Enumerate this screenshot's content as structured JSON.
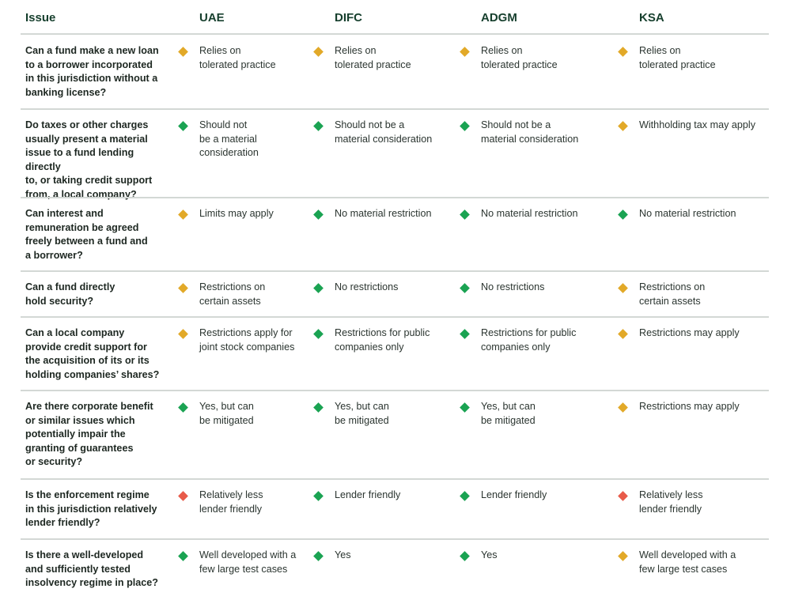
{
  "header": {
    "issue": "Issue",
    "uae": "UAE",
    "difc": "DIFC",
    "adgm": "ADGM",
    "ksa": "KSA"
  },
  "status_colors": {
    "green": "#1aa352",
    "amber": "#e2a928",
    "red": "#e85b4a"
  },
  "rows": [
    {
      "question": [
        "Can a fund make a new loan",
        "to a borrower incorporated",
        "in this jurisdiction without a",
        "banking license?"
      ],
      "uae": {
        "status": "amber",
        "text": [
          "Relies on",
          "tolerated practice"
        ]
      },
      "difc": {
        "status": "amber",
        "text": [
          "Relies on",
          "tolerated practice"
        ]
      },
      "adgm": {
        "status": "amber",
        "text": [
          "Relies on",
          "tolerated practice"
        ]
      },
      "ksa": {
        "status": "amber",
        "text": [
          "Relies on",
          "tolerated practice"
        ]
      }
    },
    {
      "question": [
        "Do taxes or other charges",
        "usually present a material",
        "issue to a fund lending directly",
        "to, or taking credit support",
        "from, a local company?"
      ],
      "uae": {
        "status": "green",
        "text": [
          "Should not",
          "be a material",
          "consideration"
        ]
      },
      "difc": {
        "status": "green",
        "text": [
          "Should not be a",
          "material consideration"
        ]
      },
      "adgm": {
        "status": "green",
        "text": [
          "Should not be a",
          "material consideration"
        ]
      },
      "ksa": {
        "status": "amber",
        "text": [
          "Withholding tax may apply"
        ]
      }
    },
    {
      "question": [
        "Can interest and",
        "remuneration be agreed",
        "freely between a fund and",
        "a borrower?"
      ],
      "uae": {
        "status": "amber",
        "text": [
          "Limits may apply"
        ]
      },
      "difc": {
        "status": "green",
        "text": [
          "No material restriction"
        ]
      },
      "adgm": {
        "status": "green",
        "text": [
          "No material restriction"
        ]
      },
      "ksa": {
        "status": "green",
        "text": [
          "No material restriction"
        ]
      }
    },
    {
      "question": [
        "Can a fund directly",
        "hold security?"
      ],
      "uae": {
        "status": "amber",
        "text": [
          "Restrictions on",
          "certain assets"
        ]
      },
      "difc": {
        "status": "green",
        "text": [
          "No restrictions"
        ]
      },
      "adgm": {
        "status": "green",
        "text": [
          "No restrictions"
        ]
      },
      "ksa": {
        "status": "amber",
        "text": [
          "Restrictions on",
          "certain assets"
        ]
      }
    },
    {
      "question": [
        "Can a local company",
        "provide credit support for",
        "the acquisition of its or its",
        "holding companies’ shares?"
      ],
      "uae": {
        "status": "amber",
        "text": [
          "Restrictions apply for",
          "joint stock companies"
        ]
      },
      "difc": {
        "status": "green",
        "text": [
          "Restrictions for public",
          "companies only"
        ]
      },
      "adgm": {
        "status": "green",
        "text": [
          "Restrictions for public",
          "companies only"
        ]
      },
      "ksa": {
        "status": "amber",
        "text": [
          "Restrictions may apply"
        ]
      }
    },
    {
      "question": [
        "Are there corporate benefit",
        "or similar issues which",
        "potentially impair the",
        "granting of guarantees",
        "or security?"
      ],
      "uae": {
        "status": "green",
        "text": [
          "Yes, but can",
          "be mitigated"
        ]
      },
      "difc": {
        "status": "green",
        "text": [
          "Yes, but can",
          "be mitigated"
        ]
      },
      "adgm": {
        "status": "green",
        "text": [
          "Yes, but can",
          "be mitigated"
        ]
      },
      "ksa": {
        "status": "amber",
        "text": [
          "Restrictions may apply"
        ]
      }
    },
    {
      "question": [
        "Is the enforcement regime",
        "in this jurisdiction relatively",
        "lender friendly?"
      ],
      "uae": {
        "status": "red",
        "text": [
          "Relatively less",
          "lender friendly"
        ]
      },
      "difc": {
        "status": "green",
        "text": [
          "Lender friendly"
        ]
      },
      "adgm": {
        "status": "green",
        "text": [
          "Lender friendly"
        ]
      },
      "ksa": {
        "status": "red",
        "text": [
          "Relatively less",
          "lender friendly"
        ]
      }
    },
    {
      "question": [
        "Is there a well-developed",
        "and sufficiently tested",
        "insolvency regime in place?"
      ],
      "uae": {
        "status": "green",
        "text": [
          "Well developed with a",
          "few large test cases"
        ]
      },
      "difc": {
        "status": "green",
        "text": [
          "Yes"
        ]
      },
      "adgm": {
        "status": "green",
        "text": [
          "Yes"
        ]
      },
      "ksa": {
        "status": "amber",
        "text": [
          "Well developed with a",
          "few large test cases"
        ]
      }
    }
  ]
}
